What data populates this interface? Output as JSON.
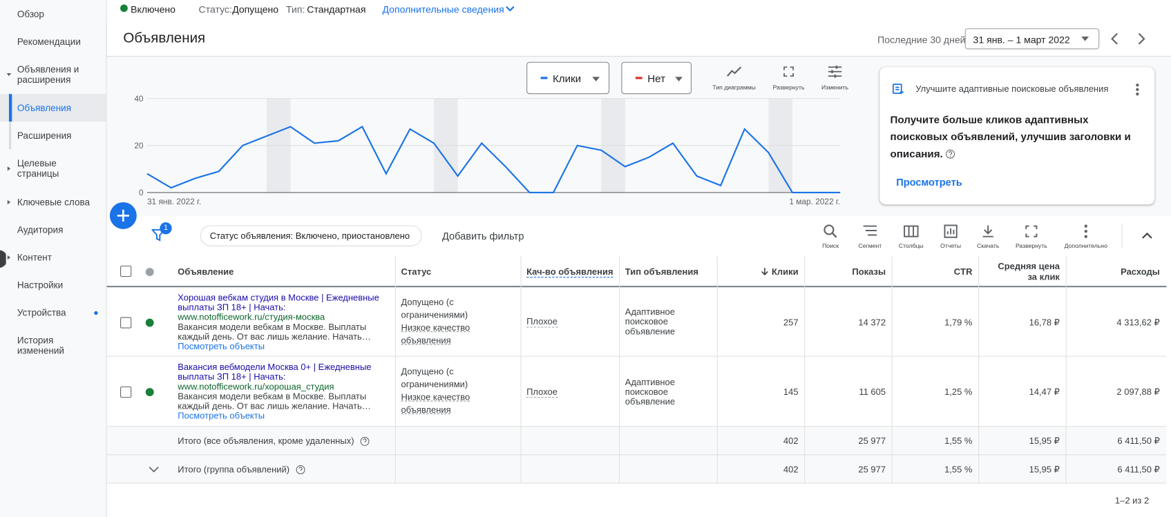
{
  "status_bar": {
    "enabled": "Включено",
    "status_label": "Статус:",
    "status": "Допущено",
    "type_label": "Тип:",
    "type": "Стандартная",
    "more": "Дополнительные сведения"
  },
  "sidebar": [
    "Обзор",
    "Рекомендации",
    "Объявления и расширения",
    "Объявления",
    "Расширения",
    "Целевые страницы",
    "Ключевые слова",
    "Аудитория",
    "Контент",
    "Настройки",
    "Устройства",
    "История изменений"
  ],
  "header": {
    "title": "Объявления",
    "period_label": "Последние 30 дней",
    "date_range": "31 янв. – 1 март 2022"
  },
  "chart_controls": {
    "metric1": "Клики",
    "metric2": "Нет",
    "chart_type": "Тип диаграммы",
    "expand": "Развернуть",
    "edit": "Изменить"
  },
  "chart_data": {
    "type": "line",
    "categories": [
      "31 янв. 2022 г.",
      null,
      null,
      null,
      null,
      null,
      null,
      null,
      null,
      null,
      null,
      null,
      null,
      null,
      null,
      null,
      null,
      null,
      null,
      null,
      null,
      null,
      null,
      null,
      null,
      null,
      null,
      null,
      null,
      "1 мар. 2022 г."
    ],
    "series": [
      {
        "name": "Клики",
        "color": "#1a73e8",
        "values": [
          8,
          2,
          6,
          9,
          20,
          24,
          28,
          21,
          22,
          28,
          8,
          27,
          21,
          7,
          21,
          11,
          0,
          0,
          20,
          18,
          11,
          15,
          21,
          7,
          3,
          27,
          17,
          0,
          0,
          0
        ]
      }
    ],
    "ylim": [
      0,
      40
    ],
    "yticks": [
      0,
      20,
      40
    ],
    "grid": true
  },
  "card": {
    "title": "Улучшите адаптивные поисковые объявления",
    "body": "Получите больше кликов адаптивных поисковых объявлений, улучшив заголовки и описания.",
    "link": "Просмотреть"
  },
  "filter": {
    "count": "1",
    "chip": "Статус объявления: Включено, приостановлено",
    "add": "Добавить фильтр"
  },
  "toolbar": [
    "Поиск",
    "Сегмент",
    "Столбцы",
    "Отчеты",
    "Скачать",
    "Развернуть",
    "Дополнительно"
  ],
  "table": {
    "columns": [
      "Объявление",
      "Статус",
      "Кач-во объявления",
      "Тип объявления",
      "Клики",
      "Показы",
      "CTR",
      "Средняя цена за клик",
      "Расходы"
    ],
    "rows": [
      {
        "headline": "Хорошая вебкам студия в Москве | Ежедневные выплаты ЗП 18+ | Начать:",
        "url": "www.notofficework.ru/студия-москва",
        "description": "Вакансия модели вебкам в Москве. Выплаты каждый день. От вас лишь желание. Начать…",
        "link": "Посмотреть объекты",
        "status": "Допущено (с ограничениями)",
        "status_note": "Низкое качество объявления",
        "quality": "Плохое",
        "ad_type": "Адаптивное поисковое объявление",
        "cells": [
          "257",
          "14 372",
          "1,79 %",
          "16,78 ₽",
          "4 313,62 ₽"
        ]
      },
      {
        "headline": "Вакансия вебмодели Москва 0+ | Ежедневные выплаты ЗП 18+ | Начать:",
        "url": "www.notofficework.ru/хорошая_студия",
        "description": "Вакансия модели вебкам в Москве. Выплаты каждый день. От вас лишь желание. Начать…",
        "link": "Посмотреть объекты",
        "status": "Допущено (с ограничениями)",
        "status_note": "Низкое качество объявления",
        "quality": "Плохое",
        "ad_type": "Адаптивное поисковое объявление",
        "cells": [
          "145",
          "11 605",
          "1,25 %",
          "14,47 ₽",
          "2 097,88 ₽"
        ]
      }
    ],
    "totals": [
      {
        "label": "Итого (все объявления, кроме удаленных)",
        "cells": [
          "402",
          "25 977",
          "1,55 %",
          "15,95 ₽",
          "6 411,50 ₽"
        ]
      },
      {
        "label": "Итого (группа объявлений)",
        "cells": [
          "402",
          "25 977",
          "1,55 %",
          "15,95 ₽",
          "6 411,50 ₽"
        ]
      }
    ]
  },
  "pagination": "1–2 из 2"
}
